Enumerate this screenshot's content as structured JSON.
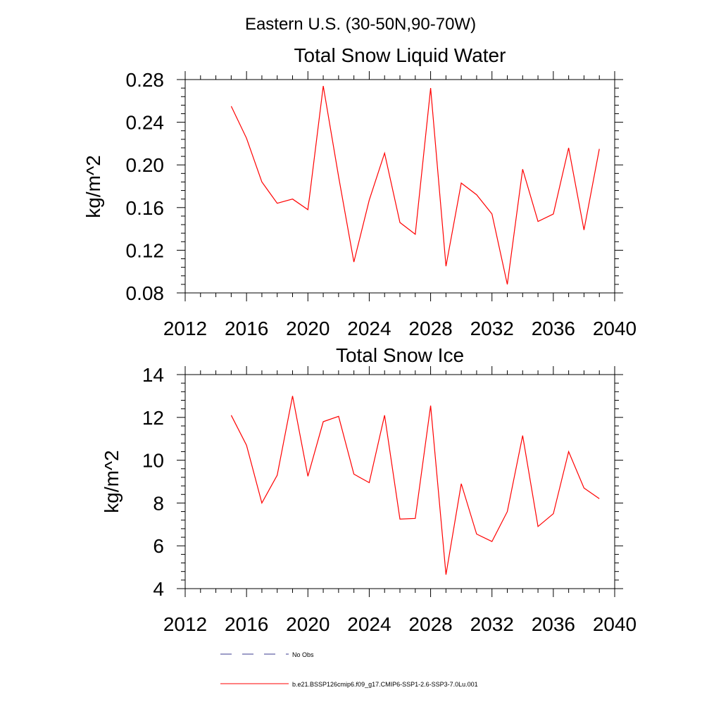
{
  "figure": {
    "title": "Eastern U.S. (30-50N,90-70W)"
  },
  "chart_data": [
    {
      "type": "line",
      "title": "Total Snow Liquid Water",
      "ylabel": "kg/m^2",
      "xlabel": "",
      "xlim": [
        2012,
        2040
      ],
      "ylim": [
        0.08,
        0.28
      ],
      "x_ticks": [
        "2012",
        "2016",
        "2020",
        "2024",
        "2028",
        "2032",
        "2036",
        "2040"
      ],
      "y_ticks": [
        "0.08",
        "0.12",
        "0.16",
        "0.20",
        "0.24",
        "0.28"
      ],
      "series": [
        {
          "name": "b.e21.BSSP126cmip6.f09_g17.CMIP6-SSP1-2.6-SSP3-7.0Lu.001",
          "color": "#ff0000",
          "x": [
            2015,
            2016,
            2017,
            2018,
            2019,
            2020,
            2021,
            2022,
            2023,
            2024,
            2025,
            2026,
            2027,
            2028,
            2029,
            2030,
            2031,
            2032,
            2033,
            2034,
            2035,
            2036,
            2037,
            2038,
            2039
          ],
          "values": [
            0.255,
            0.225,
            0.184,
            0.164,
            0.168,
            0.158,
            0.274,
            0.189,
            0.109,
            0.167,
            0.211,
            0.146,
            0.135,
            0.272,
            0.105,
            0.183,
            0.172,
            0.154,
            0.088,
            0.196,
            0.147,
            0.154,
            0.216,
            0.139,
            0.215
          ]
        }
      ]
    },
    {
      "type": "line",
      "title": "Total Snow Ice",
      "ylabel": "kg/m^2",
      "xlabel": "",
      "xlim": [
        2012,
        2040
      ],
      "ylim": [
        4,
        14
      ],
      "x_ticks": [
        "2012",
        "2016",
        "2020",
        "2024",
        "2028",
        "2032",
        "2036",
        "2040"
      ],
      "y_ticks": [
        "4",
        "6",
        "8",
        "10",
        "12",
        "14"
      ],
      "series": [
        {
          "name": "b.e21.BSSP126cmip6.f09_g17.CMIP6-SSP1-2.6-SSP3-7.0Lu.001",
          "color": "#ff0000",
          "x": [
            2015,
            2016,
            2017,
            2018,
            2019,
            2020,
            2021,
            2022,
            2023,
            2024,
            2025,
            2026,
            2027,
            2028,
            2029,
            2030,
            2031,
            2032,
            2033,
            2034,
            2035,
            2036,
            2037,
            2038,
            2039
          ],
          "values": [
            12.1,
            10.7,
            8.0,
            9.3,
            13.0,
            9.25,
            11.8,
            12.05,
            9.35,
            8.95,
            12.1,
            7.25,
            7.28,
            12.55,
            4.65,
            8.9,
            6.55,
            6.2,
            7.6,
            11.15,
            6.9,
            7.5,
            10.4,
            8.7,
            8.2
          ]
        }
      ]
    }
  ],
  "legend": {
    "position": "bottom-left",
    "items": [
      {
        "label": "No Obs",
        "color": "#3b3b8f",
        "dashed": true
      },
      {
        "label": "b.e21.BSSP126cmip6.f09_g17.CMIP6-SSP1-2.6-SSP3-7.0Lu.001",
        "color": "#ff0000",
        "dashed": false
      }
    ]
  }
}
